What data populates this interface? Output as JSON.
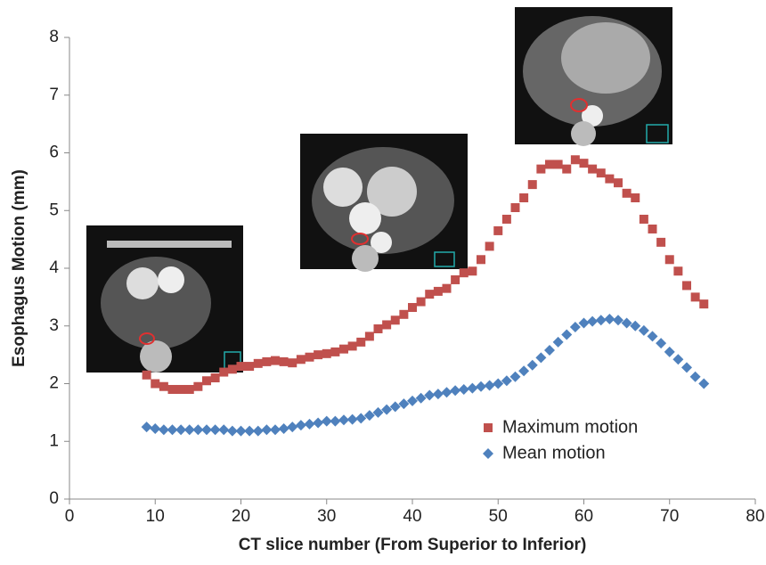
{
  "chart_data": {
    "type": "scatter",
    "xlabel": "CT slice number (From Superior to Inferior)",
    "ylabel": "Esophagus Motion (mm)",
    "x": [
      9,
      10,
      11,
      12,
      13,
      14,
      15,
      16,
      17,
      18,
      19,
      20,
      21,
      22,
      23,
      24,
      25,
      26,
      27,
      28,
      29,
      30,
      31,
      32,
      33,
      34,
      35,
      36,
      37,
      38,
      39,
      40,
      41,
      42,
      43,
      44,
      45,
      46,
      47,
      48,
      49,
      50,
      51,
      52,
      53,
      54,
      55,
      56,
      57,
      58,
      59,
      60,
      61,
      62,
      63,
      64,
      65,
      66,
      67,
      68,
      69,
      70,
      71,
      72,
      73,
      74
    ],
    "series": [
      {
        "name": "Maximum motion",
        "color": "#c0504d",
        "marker": "square",
        "values": [
          2.15,
          2.0,
          1.95,
          1.9,
          1.9,
          1.9,
          1.95,
          2.05,
          2.1,
          2.2,
          2.25,
          2.3,
          2.3,
          2.35,
          2.38,
          2.4,
          2.38,
          2.36,
          2.42,
          2.46,
          2.5,
          2.52,
          2.55,
          2.6,
          2.65,
          2.72,
          2.82,
          2.95,
          3.02,
          3.1,
          3.2,
          3.32,
          3.42,
          3.55,
          3.6,
          3.65,
          3.8,
          3.92,
          3.95,
          4.15,
          4.38,
          4.65,
          4.85,
          5.05,
          5.22,
          5.45,
          5.72,
          5.8,
          5.8,
          5.72,
          5.88,
          5.82,
          5.72,
          5.65,
          5.55,
          5.48,
          5.3,
          5.22,
          4.85,
          4.68,
          4.45,
          4.15,
          3.95,
          3.7,
          3.5,
          3.38
        ]
      },
      {
        "name": "Mean motion",
        "color": "#4f81bd",
        "marker": "diamond",
        "values": [
          1.25,
          1.22,
          1.2,
          1.2,
          1.2,
          1.2,
          1.2,
          1.2,
          1.2,
          1.2,
          1.18,
          1.18,
          1.18,
          1.18,
          1.2,
          1.2,
          1.22,
          1.25,
          1.28,
          1.3,
          1.32,
          1.35,
          1.35,
          1.37,
          1.38,
          1.4,
          1.45,
          1.5,
          1.55,
          1.6,
          1.65,
          1.7,
          1.75,
          1.8,
          1.82,
          1.85,
          1.88,
          1.9,
          1.92,
          1.95,
          1.97,
          2.0,
          2.05,
          2.12,
          2.22,
          2.32,
          2.45,
          2.58,
          2.72,
          2.85,
          2.98,
          3.05,
          3.08,
          3.1,
          3.12,
          3.1,
          3.05,
          3.0,
          2.92,
          2.82,
          2.7,
          2.55,
          2.42,
          2.28,
          2.12,
          2.0
        ]
      }
    ],
    "xlim": [
      0,
      80
    ],
    "xticks": [
      0,
      10,
      20,
      30,
      40,
      50,
      60,
      70,
      80
    ],
    "ylim": [
      0,
      8
    ],
    "yticks": [
      0,
      1,
      2,
      3,
      4,
      5,
      6,
      7,
      8
    ],
    "legend": "lower right",
    "grid": false
  }
}
